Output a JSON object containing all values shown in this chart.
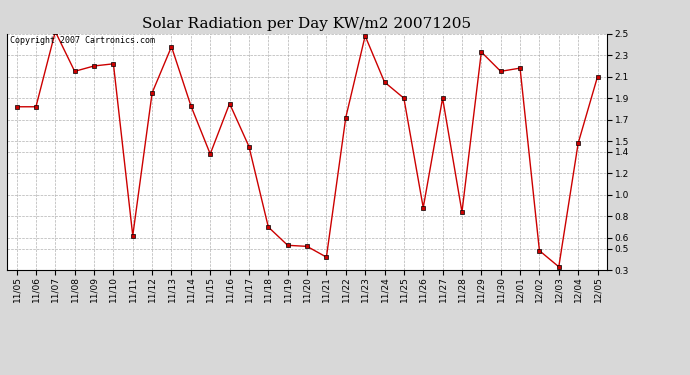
{
  "title": "Solar Radiation per Day KW/m2 20071205",
  "copyright": "Copyright 2007 Cartronics.com",
  "labels": [
    "11/05",
    "11/06",
    "11/07",
    "11/08",
    "11/09",
    "11/10",
    "11/11",
    "11/12",
    "11/13",
    "11/14",
    "11/15",
    "11/16",
    "11/17",
    "11/18",
    "11/19",
    "11/20",
    "11/21",
    "11/22",
    "11/23",
    "11/24",
    "11/25",
    "11/26",
    "11/27",
    "11/28",
    "11/29",
    "11/30",
    "12/01",
    "12/02",
    "12/03",
    "12/04",
    "12/05"
  ],
  "values": [
    1.82,
    1.82,
    2.52,
    2.15,
    2.2,
    2.22,
    0.62,
    1.95,
    2.38,
    1.83,
    1.38,
    1.85,
    1.45,
    0.7,
    0.53,
    0.52,
    0.42,
    1.72,
    2.48,
    2.05,
    1.9,
    0.88,
    1.9,
    0.84,
    2.33,
    2.15,
    2.18,
    0.48,
    0.33,
    1.48,
    2.1
  ],
  "line_color": "#cc0000",
  "marker_color": "#000000",
  "bg_color": "#d8d8d8",
  "plot_bg_color": "#ffffff",
  "grid_color": "#aaaaaa",
  "ylim": [
    0.3,
    2.5
  ],
  "yticks": [
    0.3,
    0.5,
    0.6,
    0.8,
    1.0,
    1.2,
    1.4,
    1.5,
    1.7,
    1.9,
    2.1,
    2.3,
    2.5
  ],
  "title_fontsize": 11,
  "copyright_fontsize": 6,
  "tick_fontsize": 6.5
}
